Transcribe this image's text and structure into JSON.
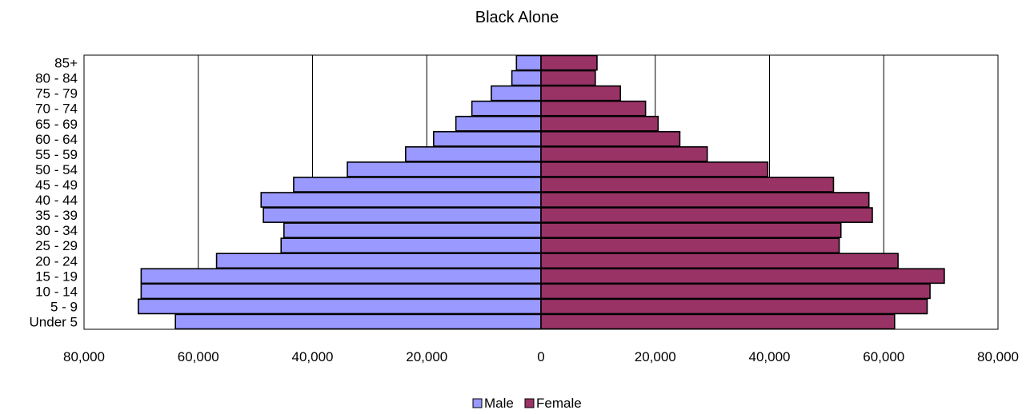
{
  "chart_data": {
    "type": "bar",
    "orientation": "horizontal",
    "title": "Black Alone",
    "categories": [
      "Under 5",
      "5 - 9",
      "10 - 14",
      "15 - 19",
      "20 - 24",
      "25 - 29",
      "30 - 34",
      "35 - 39",
      "40 - 44",
      "45 - 49",
      "50 - 54",
      "55 - 59",
      "60 - 64",
      "65 - 69",
      "70 - 74",
      "75 - 79",
      "80 - 84",
      "85+"
    ],
    "series": [
      {
        "name": "Male",
        "color": "#9999ff",
        "values": [
          64000,
          70500,
          70000,
          70000,
          56800,
          45500,
          45000,
          48600,
          49000,
          43300,
          33900,
          23700,
          18800,
          14900,
          12100,
          8700,
          5100,
          4300
        ]
      },
      {
        "name": "Female",
        "color": "#993366",
        "values": [
          61900,
          67600,
          68100,
          70600,
          62500,
          52200,
          52500,
          58000,
          57400,
          51200,
          39700,
          29100,
          24300,
          20500,
          18300,
          13900,
          9500,
          9800
        ]
      }
    ],
    "xlim": [
      -80000,
      80000
    ],
    "x_ticks": [
      -80000,
      -60000,
      -40000,
      -20000,
      0,
      20000,
      40000,
      60000,
      80000
    ],
    "x_tick_labels": [
      "80,000",
      "60,000",
      "40,000",
      "20,000",
      "0",
      "20,000",
      "40,000",
      "60,000",
      "80,000"
    ],
    "grid": true,
    "legend": "bottom-center"
  }
}
